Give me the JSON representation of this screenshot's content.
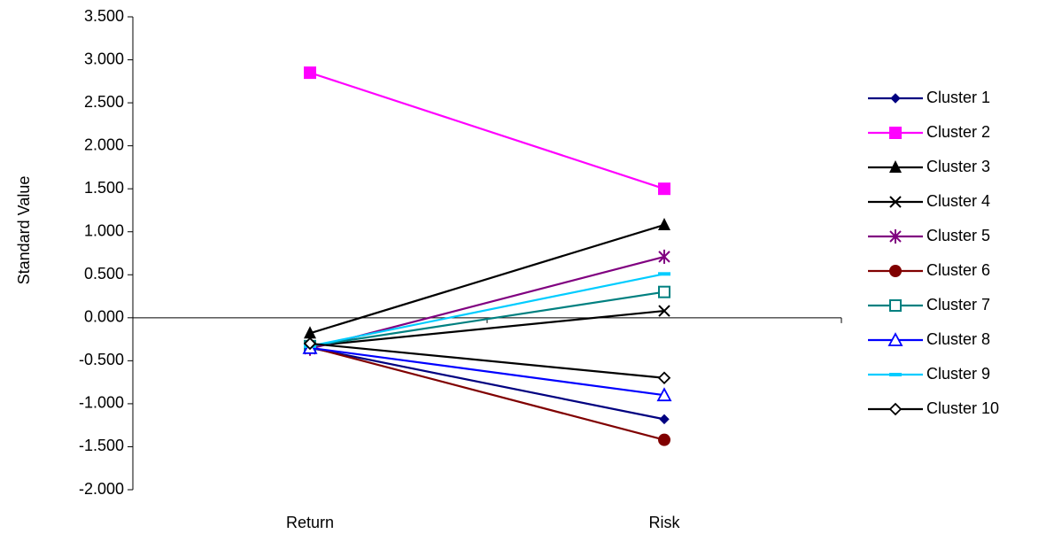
{
  "chart_data": {
    "type": "line",
    "ylabel": "Standard Value",
    "xlabel": "",
    "categories": [
      "Return",
      "Risk"
    ],
    "ylim": [
      -2.0,
      3.5
    ],
    "ytick_step": 0.5,
    "ytick_labels": [
      "3.500",
      "3.000",
      "2.500",
      "2.000",
      "1.500",
      "1.000",
      "0.500",
      "0.000",
      "-0.500",
      "-1.000",
      "-1.500",
      "-2.000"
    ],
    "grid": false,
    "legend_position": "right",
    "series": [
      {
        "name": "Cluster 1",
        "values": [
          -0.35,
          -1.18
        ],
        "color": "#000080",
        "marker": "diamond-filled"
      },
      {
        "name": "Cluster 2",
        "values": [
          2.85,
          1.5
        ],
        "color": "#FF00FF",
        "marker": "square-filled"
      },
      {
        "name": "Cluster 3",
        "values": [
          -0.18,
          1.08
        ],
        "color": "#000000",
        "marker": "triangle-filled"
      },
      {
        "name": "Cluster 4",
        "values": [
          -0.33,
          0.08
        ],
        "color": "#000000",
        "marker": "x"
      },
      {
        "name": "Cluster 5",
        "values": [
          -0.36,
          0.71
        ],
        "color": "#800080",
        "marker": "star"
      },
      {
        "name": "Cluster 6",
        "values": [
          -0.34,
          -1.42
        ],
        "color": "#800000",
        "marker": "circle-filled"
      },
      {
        "name": "Cluster 7",
        "values": [
          -0.33,
          0.3
        ],
        "color": "#008080",
        "marker": "square-open"
      },
      {
        "name": "Cluster 8",
        "values": [
          -0.35,
          -0.9
        ],
        "color": "#0000FF",
        "marker": "triangle-open"
      },
      {
        "name": "Cluster 9",
        "values": [
          -0.33,
          0.51
        ],
        "color": "#00CCFF",
        "marker": "dash"
      },
      {
        "name": "Cluster 10",
        "values": [
          -0.3,
          -0.7
        ],
        "color": "#000000",
        "marker": "diamond-open"
      }
    ]
  }
}
